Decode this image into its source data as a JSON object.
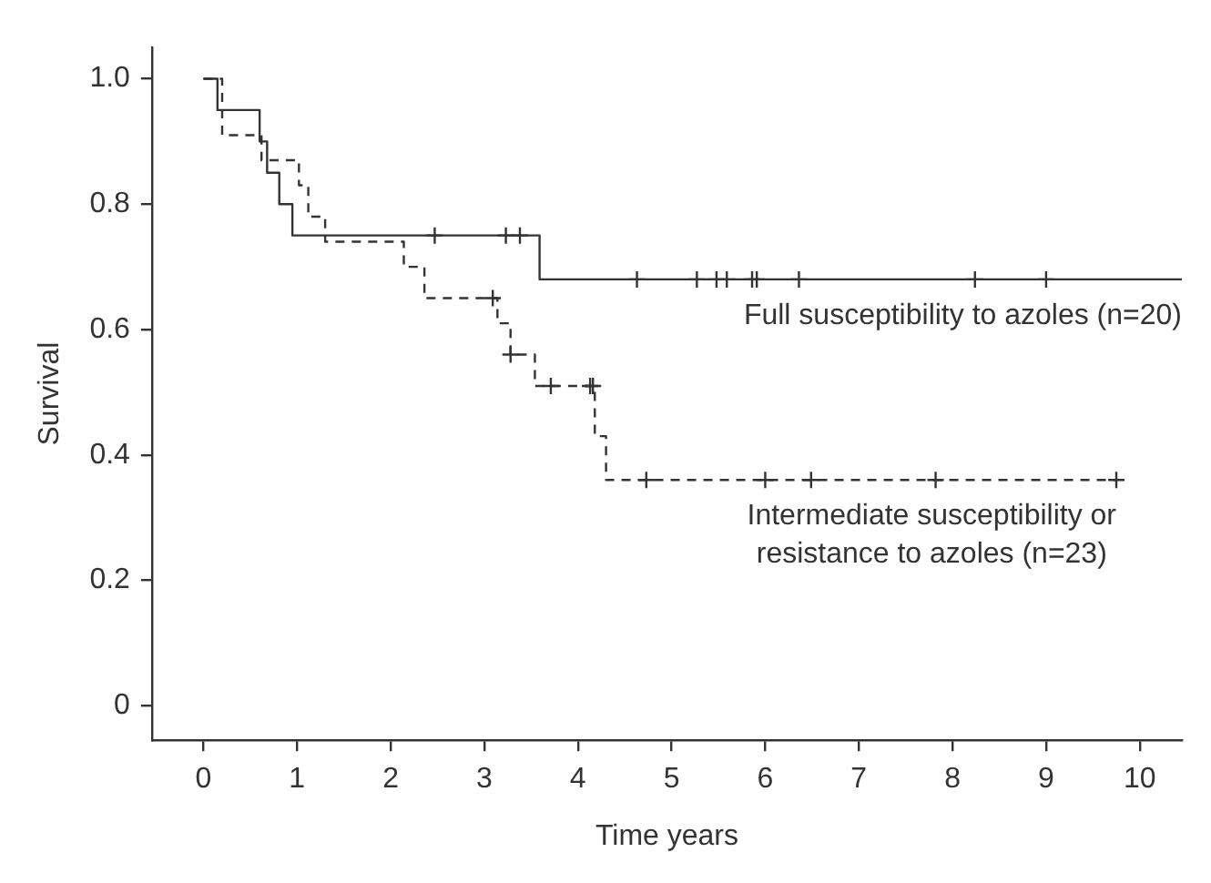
{
  "chart_data": {
    "type": "step",
    "xlabel": "Time years",
    "ylabel": "Survival",
    "xlim": [
      -0.55,
      10.45
    ],
    "xticks": [
      0,
      1,
      2,
      3,
      4,
      5,
      6,
      7,
      8,
      9,
      10
    ],
    "ylim": [
      -0.055,
      1.05
    ],
    "yticks": [
      0,
      0.2,
      0.4,
      0.6,
      0.8,
      {
        "value": 1,
        "label": "1.0"
      }
    ],
    "grid": false,
    "legend": false,
    "series": [
      {
        "name": "Full susceptibility to azoles (n=20)",
        "type": "step",
        "line_style": "solid",
        "color": "#333333",
        "x": [
          0,
          0.15,
          0.6,
          0.68,
          0.81,
          0.95,
          3.59,
          10.45
        ],
        "values": [
          1,
          0.95,
          0.9,
          0.85,
          0.8,
          0.75,
          0.68,
          0.68
        ]
      },
      {
        "name": "Intermediate susceptibility or resistance to azoles (n=23)",
        "type": "step",
        "line_style": "dashed",
        "color": "#333333",
        "x": [
          0,
          0.2,
          0.62,
          1.02,
          1.12,
          1.3,
          2.14,
          2.36,
          3.14,
          3.28,
          3.54,
          4.18,
          4.3,
          9.75
        ],
        "values": [
          1,
          0.91,
          0.87,
          0.83,
          0.78,
          0.74,
          0.7,
          0.65,
          0.61,
          0.56,
          0.51,
          0.43,
          0.36,
          0.36
        ]
      },
      {
        "type": "scatter",
        "marker": "cross",
        "color": "#333333",
        "x": [
          2.47,
          3.23,
          3.38,
          4.63,
          5.27,
          5.48,
          5.59,
          5.86,
          5.91,
          6.36,
          8.24,
          9.0
        ],
        "values": [
          0.75,
          0.75,
          0.75,
          0.68,
          0.68,
          0.68,
          0.68,
          0.68,
          0.68,
          0.68,
          0.68,
          0.68
        ]
      },
      {
        "type": "scatter",
        "marker": "cross",
        "color": "#333333",
        "x": [
          3.09,
          3.28,
          3.71,
          4.13,
          4.16,
          4.73,
          6.0,
          6.49,
          7.82,
          9.75
        ],
        "values": [
          0.65,
          0.56,
          0.51,
          0.51,
          0.51,
          0.36,
          0.36,
          0.36,
          0.36,
          0.36
        ]
      }
    ]
  }
}
